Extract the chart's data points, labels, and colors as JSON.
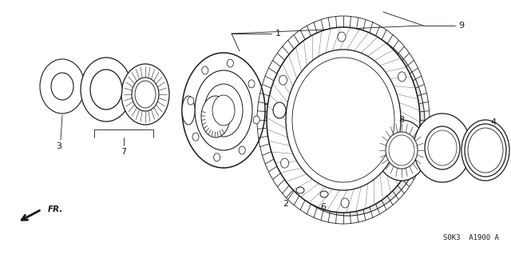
{
  "bg_color": "#ffffff",
  "line_color": "#1a1a1a",
  "fig_width": 6.4,
  "fig_height": 3.19,
  "dpi": 100,
  "watermark": "S0K3  A1900 A",
  "fr_label": "FR."
}
